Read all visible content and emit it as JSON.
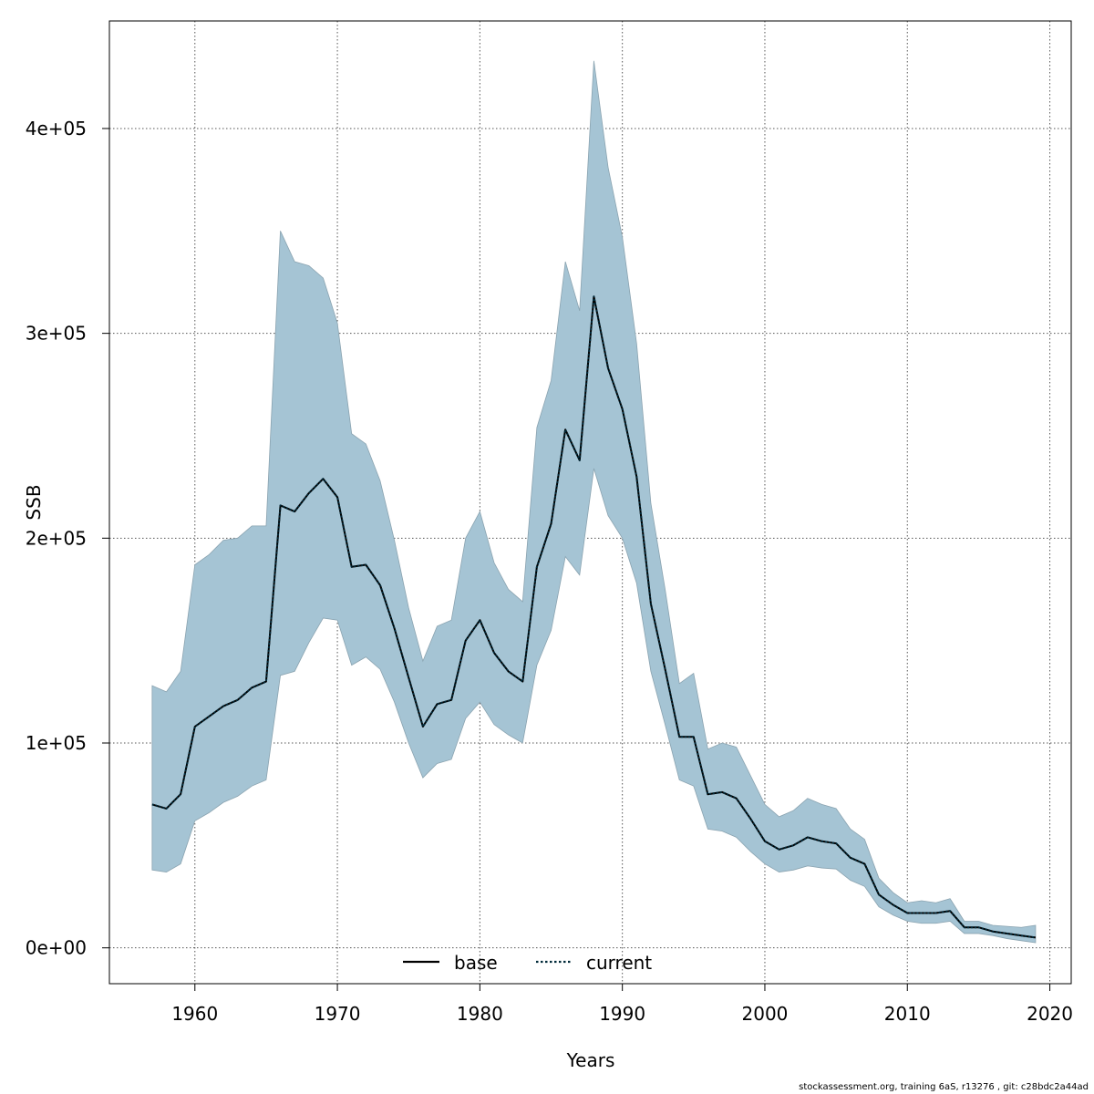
{
  "chart_data": {
    "type": "line",
    "xlabel": "Years",
    "ylabel": "SSB",
    "xlim": [
      1954,
      2021.5
    ],
    "ylim": [
      -17500,
      452500
    ],
    "xticks": [
      1960,
      1970,
      1980,
      1990,
      2000,
      2010,
      2020
    ],
    "yticks": [
      0,
      100000,
      200000,
      300000,
      400000
    ],
    "xtick_labels": [
      "1960",
      "1970",
      "1980",
      "1990",
      "2000",
      "2010",
      "2020"
    ],
    "ytick_labels": [
      "0e+00",
      "1e+05",
      "2e+05",
      "3e+05",
      "4e+05"
    ],
    "grid": true,
    "legend_position": "bottom",
    "band_color": "#a5c4d4",
    "line_color": "#002a3a",
    "x": [
      1957,
      1958,
      1959,
      1960,
      1961,
      1962,
      1963,
      1964,
      1965,
      1966,
      1967,
      1968,
      1969,
      1970,
      1971,
      1972,
      1973,
      1974,
      1975,
      1976,
      1977,
      1978,
      1979,
      1980,
      1981,
      1982,
      1983,
      1984,
      1985,
      1986,
      1987,
      1988,
      1989,
      1990,
      1991,
      1992,
      1993,
      1994,
      1995,
      1996,
      1997,
      1998,
      1999,
      2000,
      2001,
      2002,
      2003,
      2004,
      2005,
      2006,
      2007,
      2008,
      2009,
      2010,
      2011,
      2012,
      2013,
      2014,
      2015,
      2016,
      2017,
      2018,
      2019
    ],
    "series": [
      {
        "name": "base",
        "style": "solid",
        "values": [
          70000,
          68000,
          75000,
          108000,
          113000,
          118000,
          121000,
          127000,
          130000,
          216000,
          213000,
          222000,
          229000,
          220000,
          186000,
          187000,
          177000,
          156000,
          132000,
          108000,
          119000,
          121000,
          150000,
          160000,
          144000,
          135000,
          130000,
          186000,
          207000,
          253000,
          238000,
          318000,
          283000,
          263000,
          230000,
          168000,
          136000,
          103000,
          103000,
          75000,
          76000,
          73000,
          63000,
          52000,
          48000,
          50000,
          54000,
          52000,
          51000,
          44000,
          41000,
          26000,
          21000,
          17000,
          17000,
          17000,
          18000,
          10000,
          10000,
          8000,
          7000,
          6000,
          5000
        ]
      },
      {
        "name": "current",
        "style": "dotted",
        "values": [
          70000,
          68000,
          75000,
          108000,
          113000,
          118000,
          121000,
          127000,
          130000,
          216000,
          213000,
          222000,
          229000,
          220000,
          186000,
          187000,
          177000,
          156000,
          132000,
          108000,
          119000,
          121000,
          150000,
          160000,
          144000,
          135000,
          130000,
          186000,
          207000,
          253000,
          238000,
          318000,
          283000,
          263000,
          230000,
          168000,
          136000,
          103000,
          103000,
          75000,
          76000,
          73000,
          63000,
          52000,
          48000,
          50000,
          54000,
          52000,
          51000,
          44000,
          41000,
          26000,
          21000,
          17000,
          17000,
          17000,
          18000,
          10000,
          10000,
          8000,
          7000,
          6000,
          5000
        ]
      }
    ],
    "band_upper": [
      128000,
      125000,
      135000,
      187000,
      192000,
      199000,
      200000,
      206000,
      206000,
      350000,
      335000,
      333000,
      327000,
      305000,
      251000,
      246000,
      228000,
      199000,
      166000,
      140000,
      157000,
      160000,
      200000,
      213000,
      188000,
      175000,
      169000,
      254000,
      277000,
      335000,
      311000,
      433000,
      381000,
      347000,
      295000,
      217000,
      175000,
      129000,
      134000,
      97000,
      100000,
      98000,
      84000,
      70000,
      64000,
      67000,
      73000,
      70000,
      68000,
      58000,
      53000,
      34000,
      27000,
      22000,
      23000,
      22000,
      24000,
      13000,
      13000,
      11000,
      10500,
      10000,
      11000
    ],
    "band_lower": [
      38000,
      37000,
      41000,
      62000,
      66000,
      71000,
      74000,
      79000,
      82000,
      133000,
      135000,
      149000,
      161000,
      160000,
      138000,
      142000,
      136000,
      120000,
      100000,
      83000,
      90000,
      92000,
      112000,
      120000,
      109000,
      104000,
      100000,
      138000,
      155000,
      191000,
      182000,
      234000,
      211000,
      200000,
      178000,
      135000,
      109000,
      82000,
      79000,
      58000,
      57000,
      54000,
      47000,
      41000,
      37000,
      38000,
      40000,
      39000,
      38500,
      33000,
      30000,
      20000,
      16000,
      13000,
      12000,
      12000,
      13000,
      7000,
      7000,
      6000,
      4500,
      3500,
      2500
    ]
  },
  "footer": "stockassessment.org, training  6aS, r13276 , git: c28bdc2a44ad"
}
